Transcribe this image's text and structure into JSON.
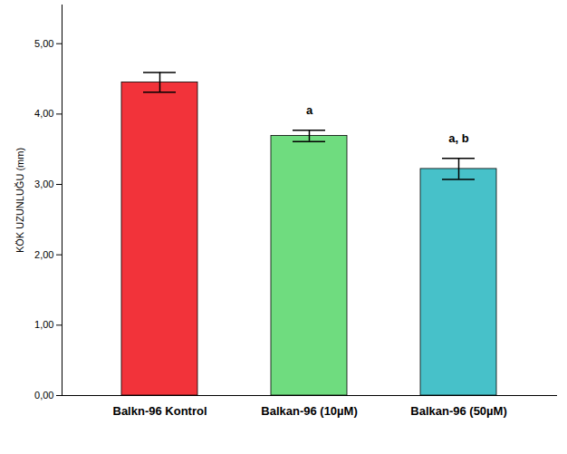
{
  "chart_data": {
    "type": "bar",
    "y_label": "KÖK UZUNLUĞU (mm)",
    "categories": [
      "Balkn-96 Kontrol",
      "Balkan-96 (10µM)",
      "Balkan-96 (50µM)"
    ],
    "values": [
      4.45,
      3.69,
      3.22
    ],
    "errors": [
      0.14,
      0.08,
      0.15
    ],
    "annotations": [
      null,
      "a",
      "a, b"
    ],
    "colors": [
      "#f2333a",
      "#6fdc7f",
      "#47c1c9"
    ],
    "ylim": [
      0,
      5.55
    ],
    "yticks": [
      {
        "value": 0,
        "label": "0,00"
      },
      {
        "value": 1,
        "label": "1,00"
      },
      {
        "value": 2,
        "label": "2,00"
      },
      {
        "value": 3,
        "label": "3,00"
      },
      {
        "value": 4,
        "label": "4,00"
      },
      {
        "value": 5,
        "label": "5,00"
      }
    ],
    "grid": false
  }
}
